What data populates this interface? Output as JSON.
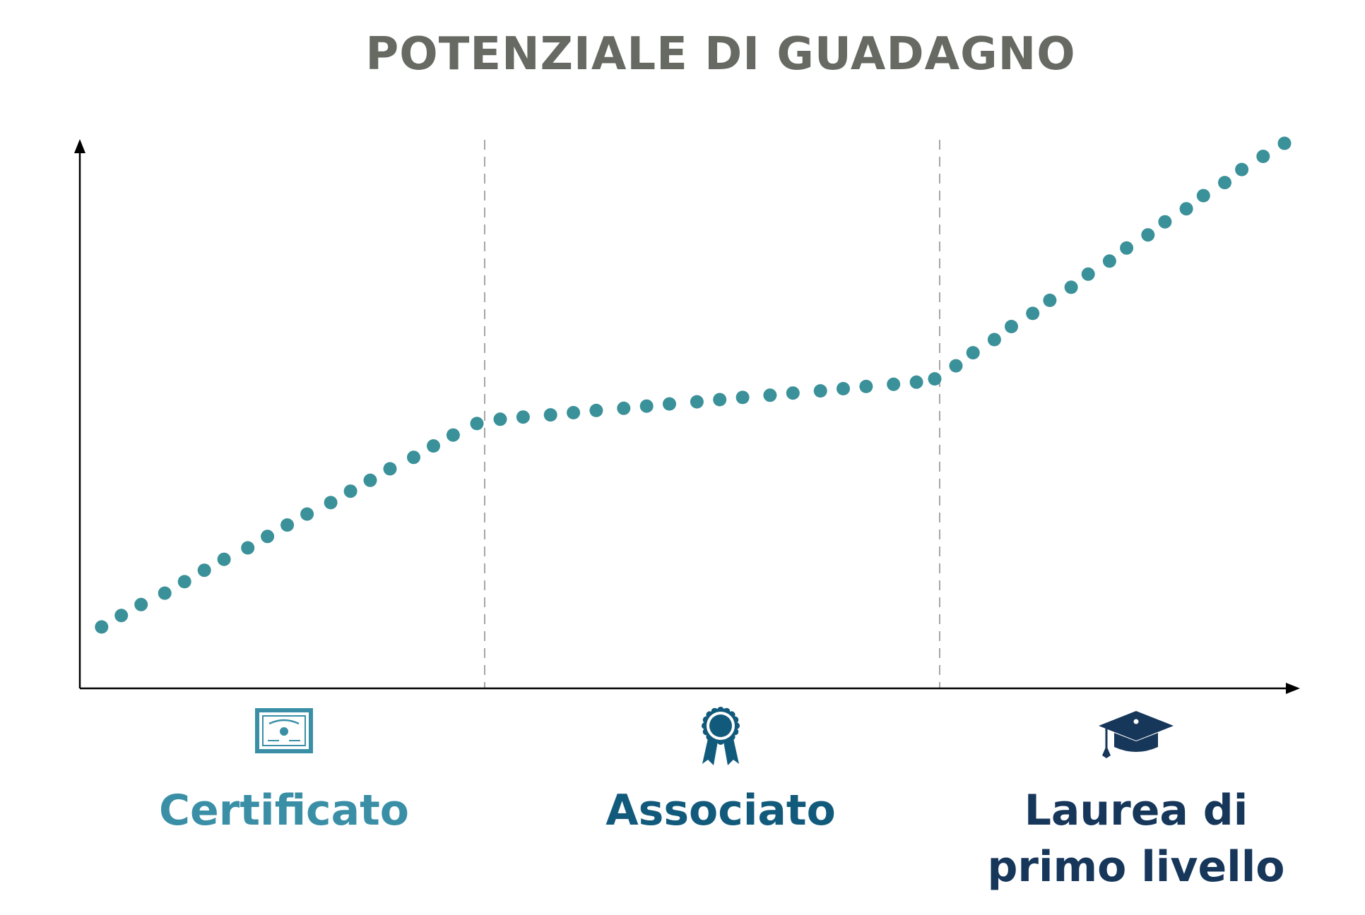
{
  "chart_data": {
    "type": "scatter",
    "title": "POTENZIALE DI GUADAGNO",
    "xlabel": "",
    "ylabel": "",
    "grid": false,
    "categories": [
      "Certificato",
      "Associato",
      "Laurea di primo livello"
    ],
    "category_labels": [
      {
        "lines": [
          "Certificato"
        ],
        "icon": "certificate-icon",
        "color": "#3a8fa6"
      },
      {
        "lines": [
          "Associato"
        ],
        "icon": "award-ribbon-icon",
        "color": "#125a7b"
      },
      {
        "lines": [
          "Laurea di",
          "primo livello"
        ],
        "icon": "graduation-cap-icon",
        "color": "#16365a"
      }
    ],
    "xlim": [
      0,
      3
    ],
    "ylim": [
      0,
      100
    ],
    "dividers": [
      1,
      2
    ],
    "series": [
      {
        "values": [
          [
            0.03,
            11.5
          ],
          [
            0.08,
            13.6
          ],
          [
            0.13,
            15.6
          ],
          [
            0.19,
            17.7
          ],
          [
            0.24,
            19.8
          ],
          [
            0.29,
            21.9
          ],
          [
            0.34,
            23.9
          ],
          [
            0.4,
            26.0
          ],
          [
            0.45,
            28.1
          ],
          [
            0.5,
            30.2
          ],
          [
            0.55,
            32.2
          ],
          [
            0.61,
            34.3
          ],
          [
            0.66,
            36.4
          ],
          [
            0.71,
            38.4
          ],
          [
            0.76,
            40.5
          ],
          [
            0.82,
            42.6
          ],
          [
            0.87,
            44.7
          ],
          [
            0.92,
            46.7
          ],
          [
            0.98,
            48.8
          ],
          [
            1.04,
            49.6
          ],
          [
            1.09,
            50.0
          ],
          [
            1.15,
            50.4
          ],
          [
            1.2,
            50.8
          ],
          [
            1.25,
            51.2
          ],
          [
            1.31,
            51.6
          ],
          [
            1.36,
            52.0
          ],
          [
            1.41,
            52.4
          ],
          [
            1.47,
            52.8
          ],
          [
            1.52,
            53.2
          ],
          [
            1.57,
            53.6
          ],
          [
            1.63,
            54.0
          ],
          [
            1.68,
            54.4
          ],
          [
            1.74,
            54.8
          ],
          [
            1.79,
            55.2
          ],
          [
            1.84,
            55.6
          ],
          [
            1.9,
            56.0
          ],
          [
            1.95,
            56.4
          ],
          [
            1.99,
            57.0
          ],
          [
            2.04,
            59.4
          ],
          [
            2.08,
            61.8
          ],
          [
            2.13,
            64.2
          ],
          [
            2.17,
            66.6
          ],
          [
            2.22,
            69.0
          ],
          [
            2.26,
            71.4
          ],
          [
            2.31,
            73.8
          ],
          [
            2.35,
            76.2
          ],
          [
            2.4,
            78.6
          ],
          [
            2.44,
            81.0
          ],
          [
            2.49,
            83.4
          ],
          [
            2.53,
            85.8
          ],
          [
            2.58,
            88.2
          ],
          [
            2.62,
            90.6
          ],
          [
            2.67,
            93.0
          ],
          [
            2.71,
            95.4
          ],
          [
            2.76,
            97.8
          ],
          [
            2.81,
            100.2
          ]
        ],
        "color": "#3b9199"
      }
    ]
  }
}
